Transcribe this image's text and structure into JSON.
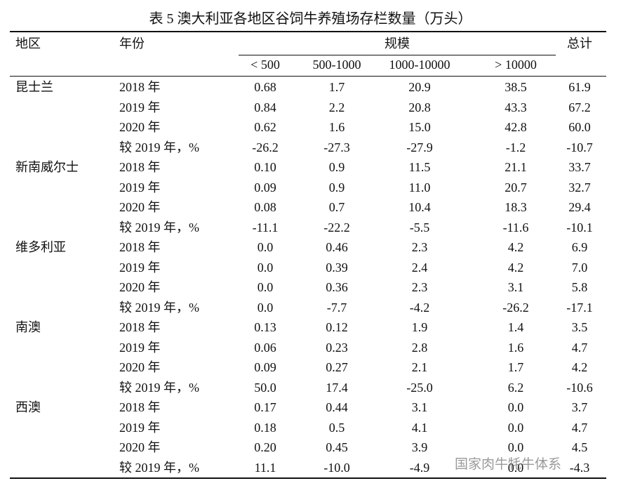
{
  "header": {
    "title": "表 5 澳大利亚各地区谷饲牛养殖场存栏数量（万头）"
  },
  "watermark": "国家肉牛牦牛体系",
  "table": {
    "columns": {
      "region": "地区",
      "year": "年份",
      "scale": "规模",
      "total": "总计",
      "sub": [
        "< 500",
        "500-1000",
        "1000-10000",
        "> 10000"
      ]
    },
    "regions": [
      {
        "name": "昆士兰",
        "rows": [
          {
            "year": "2018 年",
            "values": [
              "0.68",
              "1.7",
              "20.9",
              "38.5",
              "61.9"
            ]
          },
          {
            "year": "2019 年",
            "values": [
              "0.84",
              "2.2",
              "20.8",
              "43.3",
              "67.2"
            ]
          },
          {
            "year": "2020 年",
            "values": [
              "0.62",
              "1.6",
              "15.0",
              "42.8",
              "60.0"
            ]
          },
          {
            "year": "较 2019 年，%",
            "values": [
              "-26.2",
              "-27.3",
              "-27.9",
              "-1.2",
              "-10.7"
            ]
          }
        ]
      },
      {
        "name": "新南威尔士",
        "rows": [
          {
            "year": "2018 年",
            "values": [
              "0.10",
              "0.9",
              "11.5",
              "21.1",
              "33.7"
            ]
          },
          {
            "year": "2019 年",
            "values": [
              "0.09",
              "0.9",
              "11.0",
              "20.7",
              "32.7"
            ]
          },
          {
            "year": "2020 年",
            "values": [
              "0.08",
              "0.7",
              "10.4",
              "18.3",
              "29.4"
            ]
          },
          {
            "year": "较 2019 年，%",
            "values": [
              "-11.1",
              "-22.2",
              "-5.5",
              "-11.6",
              "-10.1"
            ]
          }
        ]
      },
      {
        "name": "维多利亚",
        "rows": [
          {
            "year": "2018 年",
            "values": [
              "0.0",
              "0.46",
              "2.3",
              "4.2",
              "6.9"
            ]
          },
          {
            "year": "2019 年",
            "values": [
              "0.0",
              "0.39",
              "2.4",
              "4.2",
              "7.0"
            ]
          },
          {
            "year": "2020 年",
            "values": [
              "0.0",
              "0.36",
              "2.3",
              "3.1",
              "5.8"
            ]
          },
          {
            "year": "较 2019 年，%",
            "values": [
              "0.0",
              "-7.7",
              "-4.2",
              "-26.2",
              "-17.1"
            ]
          }
        ]
      },
      {
        "name": "南澳",
        "rows": [
          {
            "year": "2018 年",
            "values": [
              "0.13",
              "0.12",
              "1.9",
              "1.4",
              "3.5"
            ]
          },
          {
            "year": "2019 年",
            "values": [
              "0.06",
              "0.23",
              "2.8",
              "1.6",
              "4.7"
            ]
          },
          {
            "year": "2020 年",
            "values": [
              "0.09",
              "0.27",
              "2.1",
              "1.7",
              "4.2"
            ]
          },
          {
            "year": "较 2019 年，%",
            "values": [
              "50.0",
              "17.4",
              "-25.0",
              "6.2",
              "-10.6"
            ]
          }
        ]
      },
      {
        "name": "西澳",
        "rows": [
          {
            "year": "2018 年",
            "values": [
              "0.17",
              "0.44",
              "3.1",
              "0.0",
              "3.7"
            ]
          },
          {
            "year": "2019 年",
            "values": [
              "0.18",
              "0.5",
              "4.1",
              "0.0",
              "4.7"
            ]
          },
          {
            "year": "2020 年",
            "values": [
              "0.20",
              "0.45",
              "3.9",
              "0.0",
              "4.5"
            ]
          },
          {
            "year": "较 2019 年，%",
            "values": [
              "11.1",
              "-10.0",
              "-4.9",
              "0.0",
              "-4.3"
            ]
          }
        ]
      }
    ]
  }
}
